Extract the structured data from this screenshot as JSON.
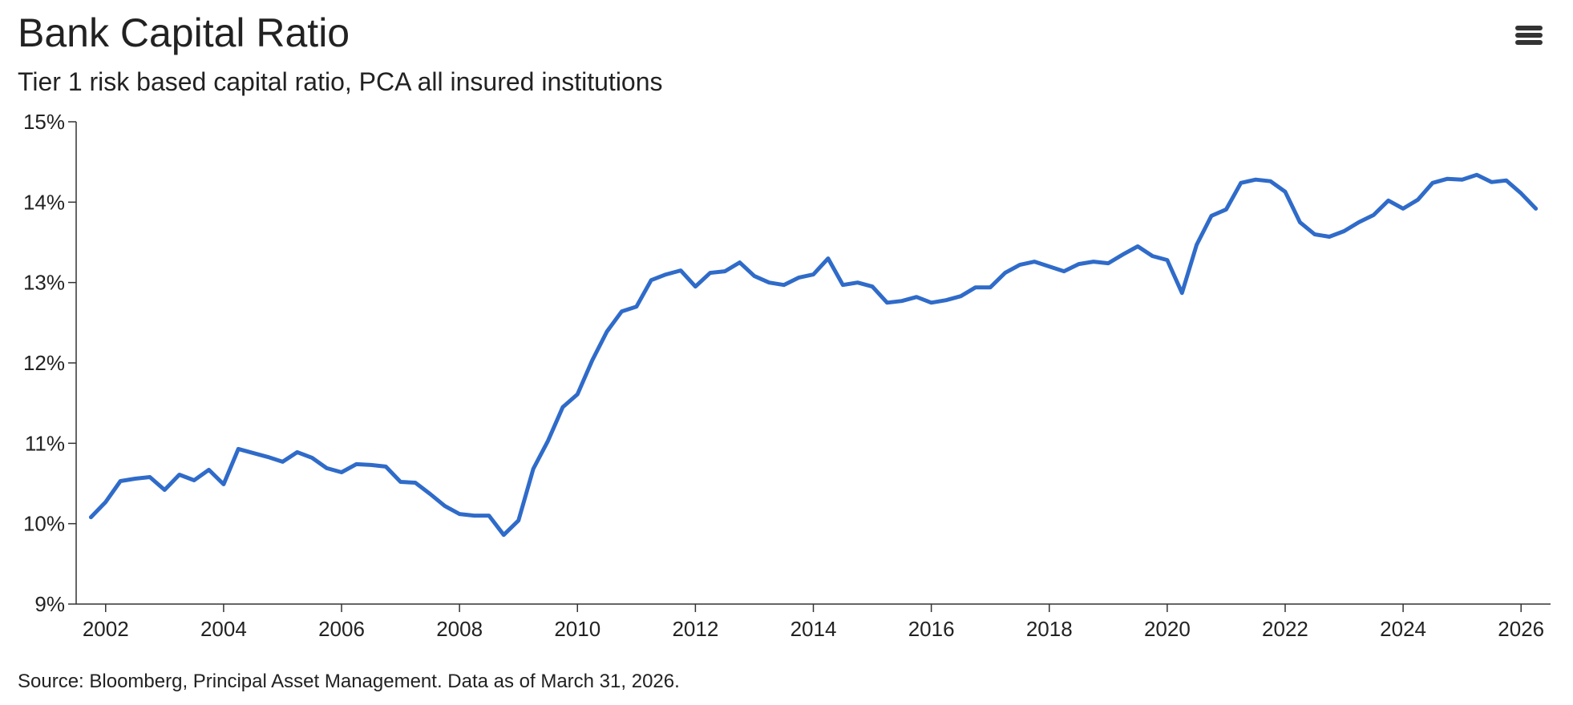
{
  "header": {
    "menu_icon": "hamburger-menu-icon"
  },
  "footer": {
    "source": "Source: Bloomberg, Principal Asset Management. Data as of March 31, 2026."
  },
  "chart_data": {
    "type": "line",
    "title": "Bank Capital Ratio",
    "subtitle": "Tier 1 risk based capital ratio, PCA all insured institutions",
    "xlabel": "",
    "ylabel": "",
    "xlim": [
      2001.5,
      2026.5
    ],
    "ylim": [
      9,
      15
    ],
    "x_ticks": [
      2002,
      2004,
      2006,
      2008,
      2010,
      2012,
      2014,
      2016,
      2018,
      2020,
      2022,
      2024,
      2026
    ],
    "x_tick_labels": [
      "2002",
      "2004",
      "2006",
      "2008",
      "2010",
      "2012",
      "2014",
      "2016",
      "2018",
      "2020",
      "2022",
      "2024",
      "2026"
    ],
    "y_ticks": [
      9,
      10,
      11,
      12,
      13,
      14,
      15
    ],
    "y_tick_labels": [
      "9%",
      "10%",
      "11%",
      "12%",
      "13%",
      "14%",
      "15%"
    ],
    "grid": false,
    "legend": "none",
    "line_color": "#2f6bc9",
    "series": [
      {
        "x": [
          2001.75,
          2002.0,
          2002.25,
          2002.5,
          2002.75,
          2003.0,
          2003.25,
          2003.5,
          2003.75,
          2004.0,
          2004.25,
          2004.5,
          2004.75,
          2005.0,
          2005.25,
          2005.5,
          2005.75,
          2006.0,
          2006.25,
          2006.5,
          2006.75,
          2007.0,
          2007.25,
          2007.5,
          2007.75,
          2008.0,
          2008.25,
          2008.5,
          2008.75,
          2009.0,
          2009.25,
          2009.5,
          2009.75,
          2010.0,
          2010.25,
          2010.5,
          2010.75,
          2011.0,
          2011.25,
          2011.5,
          2011.75,
          2012.0,
          2012.25,
          2012.5,
          2012.75,
          2013.0,
          2013.25,
          2013.5,
          2013.75,
          2014.0,
          2014.25,
          2014.5,
          2014.75,
          2015.0,
          2015.25,
          2015.5,
          2015.75,
          2016.0,
          2016.25,
          2016.5,
          2016.75,
          2017.0,
          2017.25,
          2017.5,
          2017.75,
          2018.0,
          2018.25,
          2018.5,
          2018.75,
          2019.0,
          2019.25,
          2019.5,
          2019.75,
          2020.0,
          2020.25,
          2020.5,
          2020.75,
          2021.0,
          2021.25,
          2021.5,
          2021.75,
          2022.0,
          2022.25,
          2022.5,
          2022.75,
          2023.0,
          2023.25,
          2023.5,
          2023.75,
          2024.0,
          2024.25,
          2024.5,
          2024.75,
          2025.0,
          2025.25,
          2025.5,
          2025.75,
          2026.0,
          2026.25
        ],
        "values": [
          10.08,
          10.27,
          10.53,
          10.56,
          10.58,
          10.42,
          10.61,
          10.54,
          10.67,
          10.49,
          10.93,
          10.88,
          10.83,
          10.77,
          10.89,
          10.82,
          10.69,
          10.64,
          10.74,
          10.73,
          10.71,
          10.52,
          10.51,
          10.37,
          10.22,
          10.12,
          10.1,
          10.1,
          9.86,
          10.04,
          10.68,
          11.03,
          11.45,
          11.61,
          12.03,
          12.39,
          12.64,
          12.7,
          13.03,
          13.1,
          13.15,
          12.95,
          13.12,
          13.14,
          13.25,
          13.08,
          13.0,
          12.97,
          13.06,
          13.1,
          13.3,
          12.97,
          13.0,
          12.95,
          12.75,
          12.77,
          12.82,
          12.75,
          12.78,
          12.83,
          12.94,
          12.94,
          13.12,
          13.22,
          13.26,
          13.2,
          13.14,
          13.23,
          13.26,
          13.24,
          13.35,
          13.45,
          13.33,
          13.28,
          12.87,
          13.47,
          13.83,
          13.91,
          14.24,
          14.28,
          14.26,
          14.13,
          13.75,
          13.6,
          13.57,
          13.64,
          13.75,
          13.84,
          14.02,
          13.92,
          14.03,
          14.24,
          14.29,
          14.28,
          14.34,
          14.25,
          14.27,
          14.11,
          13.92
        ]
      }
    ]
  }
}
